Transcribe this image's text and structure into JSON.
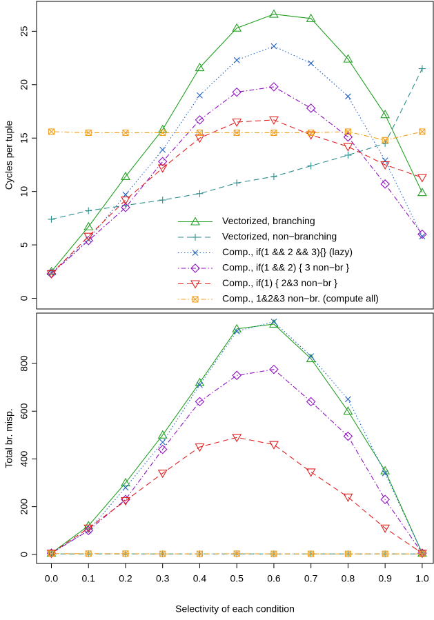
{
  "chart_data": [
    {
      "type": "line",
      "ylabel": "Cycles per tuple",
      "x": [
        0,
        0.1,
        0.2,
        0.3,
        0.4,
        0.5,
        0.6,
        0.7,
        0.8,
        0.9,
        1
      ],
      "xlim": [
        -0.04,
        1.03
      ],
      "ylim": [
        -1.0,
        27.8
      ],
      "yticks": [
        0,
        5,
        10,
        15,
        20,
        25
      ],
      "legend": "bottom-right",
      "series": [
        {
          "name": "Vectorized, branching",
          "color": "#22a022",
          "marker": "triangle-up",
          "line_style": "solid",
          "values": [
            2.5,
            6.7,
            11.4,
            15.8,
            21.6,
            25.3,
            26.6,
            26.2,
            22.4,
            17.2,
            9.9
          ]
        },
        {
          "name": "Vectorized, non−branching",
          "color": "#2a8c8c",
          "marker": "plus",
          "line_style": "dashed",
          "values": [
            7.4,
            8.2,
            8.7,
            9.2,
            9.8,
            10.8,
            11.4,
            12.4,
            13.4,
            14.5,
            21.5
          ]
        },
        {
          "name": "Comp., if(1 && 2 && 3){} (lazy)",
          "color": "#2060c0",
          "marker": "x",
          "line_style": "dotted",
          "values": [
            2.4,
            5.5,
            9.7,
            13.9,
            19.0,
            22.3,
            23.6,
            22.0,
            18.9,
            12.9,
            5.8
          ]
        },
        {
          "name": "Comp., if(1 && 2) { 3 non−br }",
          "color": "#9010c0",
          "marker": "diamond",
          "line_style": "dotdash",
          "values": [
            2.3,
            5.4,
            8.5,
            12.8,
            16.7,
            19.3,
            19.8,
            17.8,
            15.1,
            10.7,
            6.0
          ]
        },
        {
          "name": "Comp., if(1) { 2&3 non−br }",
          "color": "#e02020",
          "marker": "triangle-down",
          "line_style": "dashed",
          "values": [
            2.3,
            5.8,
            9.2,
            12.2,
            15.0,
            16.5,
            16.7,
            15.3,
            14.2,
            12.5,
            11.3
          ]
        },
        {
          "name": "Comp., 1&2&3 non−br. (compute all)",
          "color": "#f0a020",
          "marker": "boxed-x",
          "line_style": "dotdash",
          "values": [
            15.6,
            15.5,
            15.5,
            15.5,
            15.5,
            15.5,
            15.5,
            15.5,
            15.6,
            14.8,
            15.6
          ]
        }
      ]
    },
    {
      "type": "line",
      "ylabel": "Total br. misp.",
      "xlabel": "Selectivity of each condition",
      "x": [
        0,
        0.1,
        0.2,
        0.3,
        0.4,
        0.5,
        0.6,
        0.7,
        0.8,
        0.9,
        1
      ],
      "xlim": [
        -0.04,
        1.03
      ],
      "ylim": [
        -38,
        1011
      ],
      "xticks": [
        {
          "value": 0,
          "label": "0.0"
        },
        0.1,
        0.2,
        0.3,
        0.4,
        0.5,
        0.6,
        0.7,
        0.8,
        0.9,
        {
          "value": 1,
          "label": "1.0"
        }
      ],
      "yticks": [
        0,
        200,
        400,
        600,
        800
      ],
      "series": [
        {
          "color": "#22a022",
          "marker": "triangle-up",
          "line_style": "solid",
          "values": [
            5,
            120,
            300,
            500,
            720,
            945,
            965,
            820,
            600,
            350,
            5
          ]
        },
        {
          "color": "#2a8c8c",
          "marker": "plus",
          "line_style": "dashed",
          "values": [
            2,
            2,
            2,
            2,
            2,
            2,
            2,
            2,
            2,
            2,
            2
          ]
        },
        {
          "color": "#2060c0",
          "marker": "x",
          "line_style": "dotted",
          "values": [
            5,
            100,
            280,
            470,
            710,
            935,
            975,
            830,
            650,
            340,
            5
          ]
        },
        {
          "color": "#9010c0",
          "marker": "diamond",
          "line_style": "dotdash",
          "values": [
            5,
            100,
            230,
            440,
            640,
            750,
            775,
            640,
            495,
            230,
            5
          ]
        },
        {
          "color": "#e02020",
          "marker": "triangle-down",
          "line_style": "dashed",
          "values": [
            5,
            110,
            225,
            340,
            450,
            490,
            460,
            345,
            240,
            110,
            5
          ]
        },
        {
          "color": "#f0a020",
          "marker": "boxed-x",
          "line_style": "dotdash",
          "values": [
            3,
            3,
            3,
            2,
            2,
            3,
            2,
            2,
            2,
            2,
            2
          ]
        }
      ]
    }
  ]
}
